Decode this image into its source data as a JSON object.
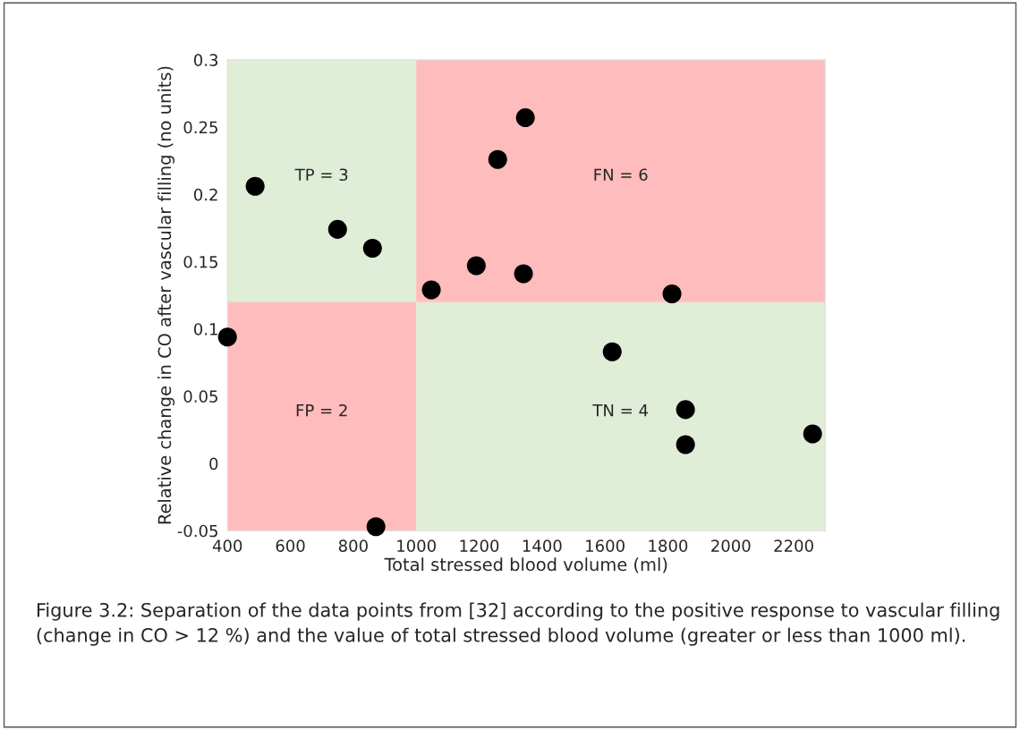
{
  "chart_data": {
    "type": "scatter",
    "xlabel": "Total stressed blood volume (ml)",
    "ylabel": "Relative change in CO after vascular filling (no units)",
    "x": [
      488,
      750,
      861,
      400,
      872,
      1048,
      1191,
      1259,
      1347,
      1341,
      1813,
      1623,
      1856,
      1856,
      2260
    ],
    "values": [
      0.206,
      0.174,
      0.16,
      0.094,
      -0.047,
      0.129,
      0.147,
      0.226,
      0.257,
      0.141,
      0.126,
      0.083,
      0.04,
      0.014,
      0.022
    ],
    "color": "#000000",
    "marker": "circle",
    "xlim": [
      400,
      2300
    ],
    "ylim": [
      -0.05,
      0.3
    ],
    "xticks": [
      400,
      600,
      800,
      1000,
      1200,
      1400,
      1600,
      1800,
      2000,
      2200
    ],
    "yticks": [
      -0.05,
      0,
      0.05,
      0.1,
      0.15,
      0.2,
      0.25,
      0.3
    ],
    "grid": false,
    "ref_lines": [
      {
        "axis": "y",
        "value": 0.12,
        "color": "#efd6cc"
      }
    ],
    "bands": [
      {
        "axis": "x",
        "from": 400,
        "to": 1000,
        "label": "TP = 3",
        "color": "#e0eed8"
      },
      {
        "axis": "x",
        "from": 1000,
        "to": 2300,
        "label": "FN = 6",
        "color": "#ffbcbc"
      },
      {
        "axis": "x",
        "from": 400,
        "to": 1000,
        "label": "FP = 2",
        "color": "#ffbcbc"
      },
      {
        "axis": "x",
        "from": 1000,
        "to": 2300,
        "label": "TN = 4",
        "color": "#e0eed8"
      }
    ],
    "annotations": [
      "Figure 3.2: Separation of the data points from [32] according to the positive response to vascular filling (change in CO > 12 %) and the value of total stressed blood volume (greater or less than 1000 ml)."
    ]
  }
}
